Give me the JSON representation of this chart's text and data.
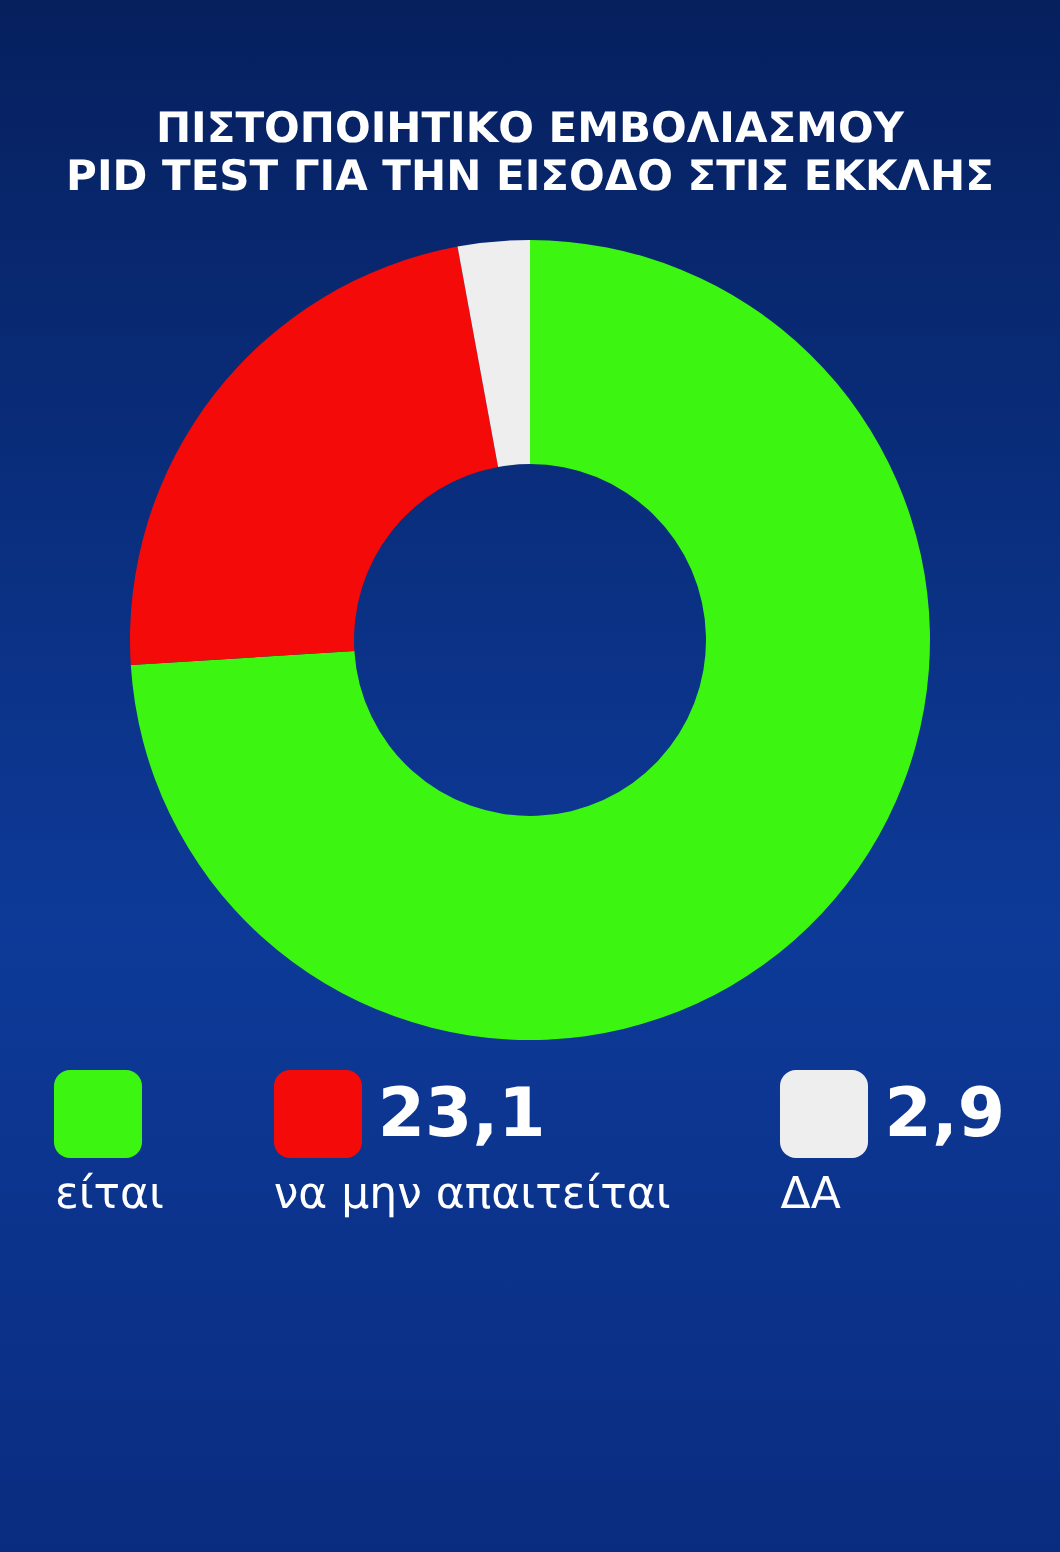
{
  "chart_data": {
    "type": "donut",
    "title": "ΠΙΣΤΟΠΟΙΗΤΙΚΟ ΕΜΒΟΛΙΑΣΜΟΥ",
    "subtitle": "PID TEST ΓΙΑ ΤΗΝ ΕΙΣΟΔΟ ΣΤΙΣ ΕΚΚΛΗΣ",
    "categories": [
      "είται",
      "να μην απαιτείται",
      "ΔΑ"
    ],
    "values": [
      74.0,
      23.1,
      2.9
    ],
    "value_labels": [
      null,
      "23,1",
      "2,9"
    ],
    "colors": [
      "#3cf511",
      "#f50a0a",
      "#eeeeee"
    ],
    "legend": "bottom"
  }
}
